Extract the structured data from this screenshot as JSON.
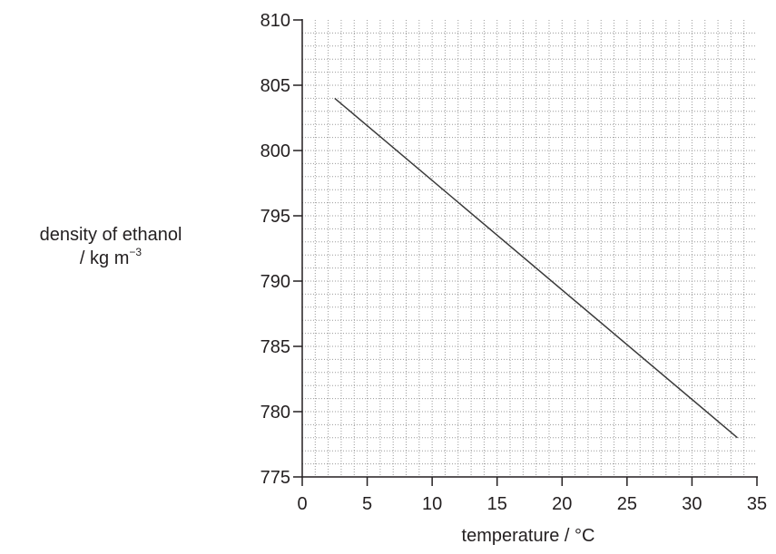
{
  "chart_data": {
    "type": "line",
    "xlabel": "temperature / °C",
    "ylabel": {
      "line1": "density of ethanol",
      "line2_prefix": "/ kg m",
      "line2_exponent": "−3"
    },
    "xlim": [
      0,
      35
    ],
    "ylim": [
      775,
      810
    ],
    "x_ticks": [
      0,
      5,
      10,
      15,
      20,
      25,
      30,
      35
    ],
    "y_ticks": [
      775,
      780,
      785,
      790,
      795,
      800,
      805,
      810
    ],
    "grid": true,
    "grid_minor_step_x": 1,
    "grid_minor_step_y": 1,
    "series": [
      {
        "x": [
          2.5,
          33.5
        ],
        "y": [
          804,
          778
        ]
      }
    ]
  },
  "colors": {
    "ink": "#231f20",
    "grid": "#9a9a9a",
    "line": "#3a3a3a"
  }
}
